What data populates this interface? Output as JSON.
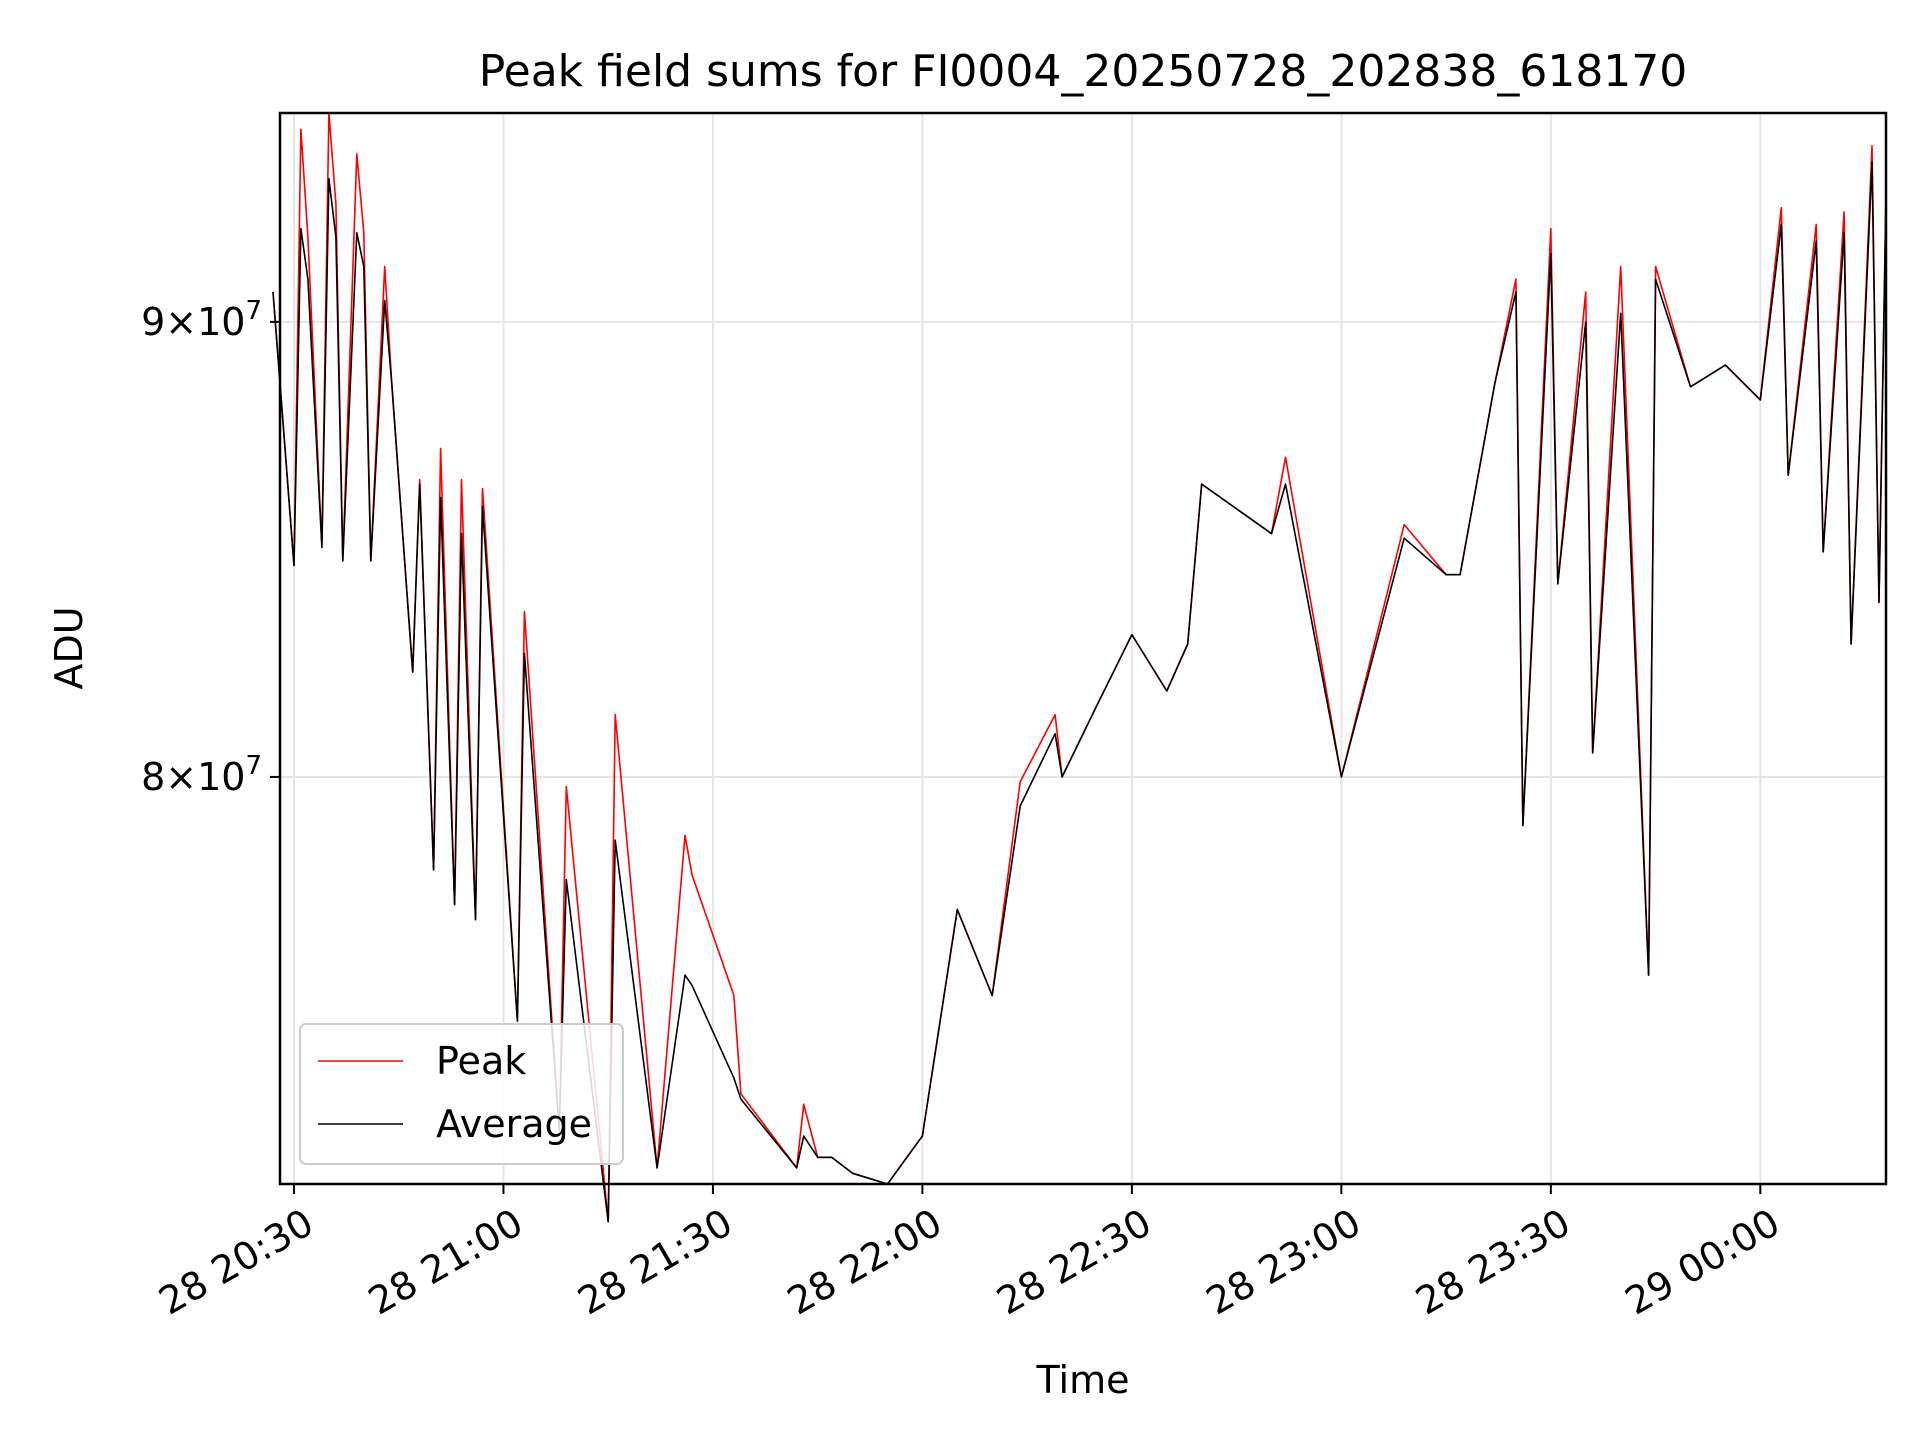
{
  "chart_data": {
    "type": "line",
    "title": "Peak field sums for FI0004_20250728_202838_618170",
    "xlabel": "Time",
    "ylabel": "ADU",
    "yscale": "log",
    "ylim": [
      72000000,
      95000000
    ],
    "xlim": [
      "2025-07-28 20:28",
      "2025-07-29 00:18"
    ],
    "grid": true,
    "legend_position": "lower-left",
    "x_ticks": [
      {
        "t": "2025-07-28 20:30",
        "label": "28 20:30"
      },
      {
        "t": "2025-07-28 21:00",
        "label": "28 21:00"
      },
      {
        "t": "2025-07-28 21:30",
        "label": "28 21:30"
      },
      {
        "t": "2025-07-28 22:00",
        "label": "28 22:00"
      },
      {
        "t": "2025-07-28 22:30",
        "label": "28 22:30"
      },
      {
        "t": "2025-07-28 23:00",
        "label": "28 23:00"
      },
      {
        "t": "2025-07-28 23:30",
        "label": "28 23:30"
      },
      {
        "t": "2025-07-29 00:00",
        "label": "29 00:00"
      }
    ],
    "y_ticks": [
      {
        "value": 80000000,
        "mantissa": "8",
        "exponent": "7"
      },
      {
        "value": 90000000,
        "mantissa": "9",
        "exponent": "7"
      }
    ],
    "x": [
      "2025-07-28 20:27",
      "2025-07-28 20:30",
      "2025-07-28 20:31",
      "2025-07-28 20:32",
      "2025-07-28 20:34",
      "2025-07-28 20:35",
      "2025-07-28 20:36",
      "2025-07-28 20:37",
      "2025-07-28 20:39",
      "2025-07-28 20:40",
      "2025-07-28 20:41",
      "2025-07-28 20:43",
      "2025-07-28 20:44",
      "2025-07-28 20:47",
      "2025-07-28 20:48",
      "2025-07-28 20:50",
      "2025-07-28 20:51",
      "2025-07-28 20:53",
      "2025-07-28 20:54",
      "2025-07-28 20:56",
      "2025-07-28 20:57",
      "2025-07-28 21:02",
      "2025-07-28 21:03",
      "2025-07-28 21:08",
      "2025-07-28 21:09",
      "2025-07-28 21:15",
      "2025-07-28 21:16",
      "2025-07-28 21:22",
      "2025-07-28 21:26",
      "2025-07-28 21:27",
      "2025-07-28 21:33",
      "2025-07-28 21:34",
      "2025-07-28 21:42",
      "2025-07-28 21:43",
      "2025-07-28 21:45",
      "2025-07-28 21:47",
      "2025-07-28 21:50",
      "2025-07-28 21:55",
      "2025-07-28 22:00",
      "2025-07-28 22:05",
      "2025-07-28 22:10",
      "2025-07-28 22:14",
      "2025-07-28 22:19",
      "2025-07-28 22:20",
      "2025-07-28 22:25",
      "2025-07-28 22:30",
      "2025-07-28 22:35",
      "2025-07-28 22:38",
      "2025-07-28 22:40",
      "2025-07-28 22:50",
      "2025-07-28 22:52",
      "2025-07-28 23:00",
      "2025-07-28 23:09",
      "2025-07-28 23:15",
      "2025-07-28 23:17",
      "2025-07-28 23:22",
      "2025-07-28 23:25",
      "2025-07-28 23:26",
      "2025-07-28 23:30",
      "2025-07-28 23:31",
      "2025-07-28 23:35",
      "2025-07-28 23:36",
      "2025-07-28 23:40",
      "2025-07-28 23:44",
      "2025-07-28 23:45",
      "2025-07-28 23:50",
      "2025-07-28 23:55",
      "2025-07-29 00:00",
      "2025-07-29 00:03",
      "2025-07-29 00:04",
      "2025-07-29 00:08",
      "2025-07-29 00:09",
      "2025-07-29 00:12",
      "2025-07-29 00:13",
      "2025-07-29 00:16",
      "2025-07-29 00:17",
      "2025-07-29 00:18"
    ],
    "series": [
      {
        "name": "Peak",
        "color": "#ff0000",
        "values": [
          90700000,
          84500000,
          94600000,
          92000000,
          84900000,
          95000000,
          92800000,
          84600000,
          94000000,
          92100000,
          84600000,
          91300000,
          88600000,
          82200000,
          86400000,
          78100000,
          87100000,
          77400000,
          86400000,
          77100000,
          86200000,
          75100000,
          83500000,
          73000000,
          79800000,
          71300000,
          81300000,
          72300000,
          78800000,
          78000000,
          75600000,
          73700000,
          72300000,
          73500000,
          72500000,
          72500000,
          72200000,
          72000000,
          72900000,
          77300000,
          75600000,
          79900000,
          81300000,
          80000000,
          81500000,
          83000000,
          81800000,
          82800000,
          86300000,
          85200000,
          86900000,
          80000000,
          85400000,
          84300000,
          84300000,
          88600000,
          91000000,
          79000000,
          92200000,
          84100000,
          90700000,
          80500000,
          91300000,
          76000000,
          91300000,
          88500000,
          89000000,
          88200000,
          92700000,
          86500000,
          92300000,
          84800000,
          92600000,
          82800000,
          94200000,
          83700000,
          93000000
        ]
      },
      {
        "name": "Average",
        "color": "#000000",
        "values": [
          90700000,
          84500000,
          92200000,
          91000000,
          84900000,
          93400000,
          92000000,
          84600000,
          92100000,
          91300000,
          84600000,
          90500000,
          88600000,
          82200000,
          86300000,
          78100000,
          86000000,
          77400000,
          85200000,
          77100000,
          85800000,
          75100000,
          82600000,
          73000000,
          77900000,
          71300000,
          78700000,
          72300000,
          76000000,
          75800000,
          74000000,
          73600000,
          72300000,
          72900000,
          72500000,
          72500000,
          72200000,
          72000000,
          72900000,
          77300000,
          75600000,
          79400000,
          80900000,
          80000000,
          81500000,
          83000000,
          81800000,
          82800000,
          86300000,
          85200000,
          86300000,
          80000000,
          85100000,
          84300000,
          84300000,
          88600000,
          90700000,
          79000000,
          91600000,
          84100000,
          90000000,
          80500000,
          90200000,
          76000000,
          91000000,
          88500000,
          89000000,
          88200000,
          92300000,
          86500000,
          91900000,
          84800000,
          92100000,
          82800000,
          93800000,
          83700000,
          93000000
        ]
      }
    ]
  }
}
